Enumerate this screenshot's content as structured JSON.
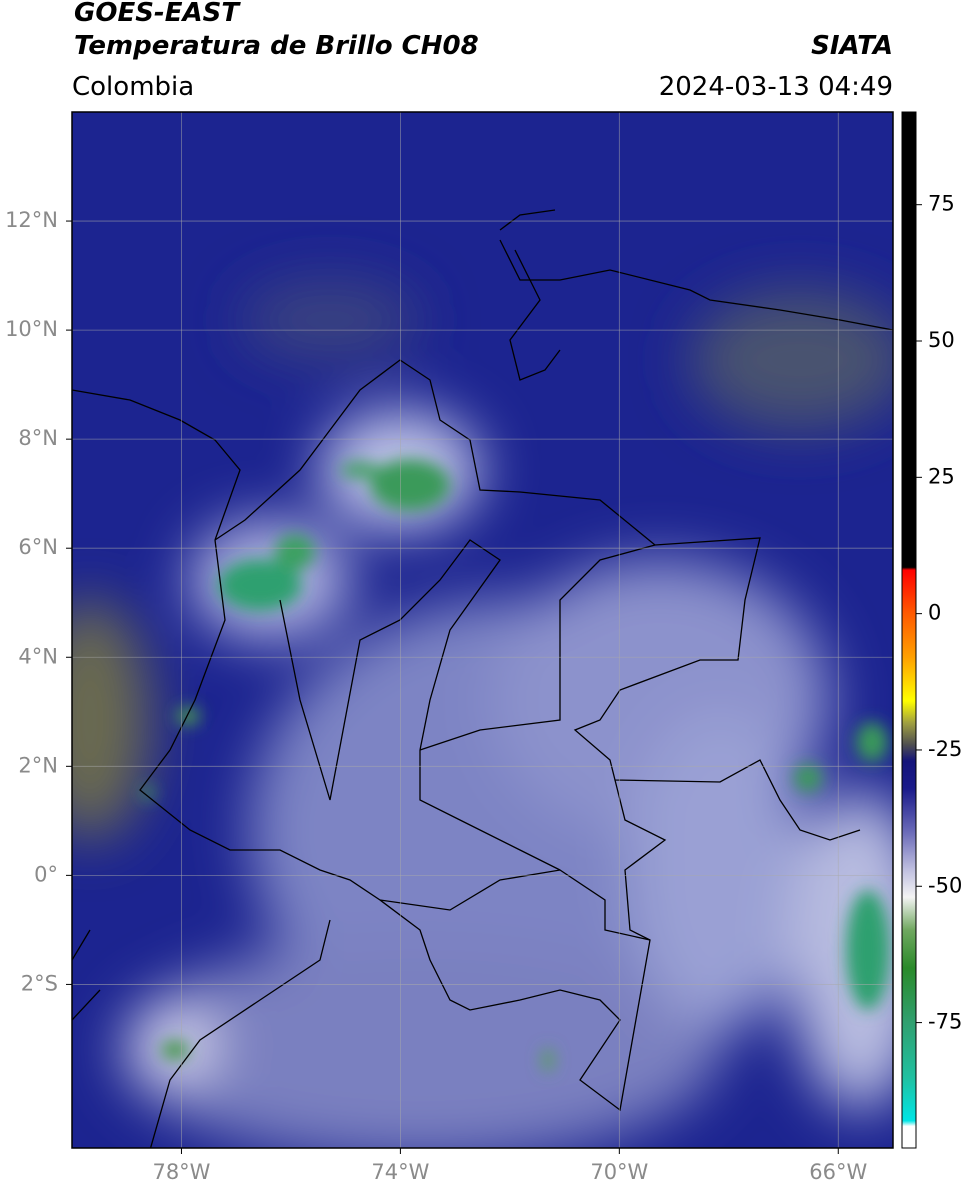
{
  "header": {
    "title": "GOES-EAST",
    "subtitle": "Temperatura de Brillo CH08",
    "source": "SIATA",
    "region": "Colombia",
    "datetime": "2024-03-13 04:49"
  },
  "map": {
    "lon_range": [
      -80,
      -65
    ],
    "lat_range": [
      -5,
      14
    ],
    "lon_ticks": [
      {
        "value": -78,
        "label": "78°W"
      },
      {
        "value": -74,
        "label": "74°W"
      },
      {
        "value": -70,
        "label": "70°W"
      },
      {
        "value": -66,
        "label": "66°W"
      }
    ],
    "lat_ticks": [
      {
        "value": 12,
        "label": "12°N"
      },
      {
        "value": 10,
        "label": "10°N"
      },
      {
        "value": 8,
        "label": "8°N"
      },
      {
        "value": 6,
        "label": "6°N"
      },
      {
        "value": 4,
        "label": "4°N"
      },
      {
        "value": 2,
        "label": "2°N"
      },
      {
        "value": 0,
        "label": "0°"
      },
      {
        "value": -2,
        "label": "2°S"
      }
    ],
    "grid": true
  },
  "colorbar": {
    "range": [
      -98,
      92
    ],
    "ticks": [
      75,
      50,
      25,
      0,
      -25,
      -50,
      -75
    ],
    "stops": [
      {
        "value": 92,
        "color": "#000000"
      },
      {
        "value": 8.5,
        "color": "#000000"
      },
      {
        "value": 8,
        "color": "#ff0000"
      },
      {
        "value": 0,
        "color": "#ff5a00"
      },
      {
        "value": -8,
        "color": "#ffa000"
      },
      {
        "value": -16,
        "color": "#ffff00"
      },
      {
        "value": -20,
        "color": "#a0a040"
      },
      {
        "value": -24,
        "color": "#505050"
      },
      {
        "value": -27,
        "color": "#14147a"
      },
      {
        "value": -32,
        "color": "#1a1a8a"
      },
      {
        "value": -40,
        "color": "#6a6ab8"
      },
      {
        "value": -47,
        "color": "#c0c0e0"
      },
      {
        "value": -52,
        "color": "#f4f4f4"
      },
      {
        "value": -58,
        "color": "#70a860"
      },
      {
        "value": -65,
        "color": "#2a8a2a"
      },
      {
        "value": -75,
        "color": "#30a070"
      },
      {
        "value": -85,
        "color": "#20c0a0"
      },
      {
        "value": -93,
        "color": "#00e5e5"
      },
      {
        "value": -94,
        "color": "#ffffff"
      },
      {
        "value": -98,
        "color": "#ffffff"
      }
    ]
  }
}
